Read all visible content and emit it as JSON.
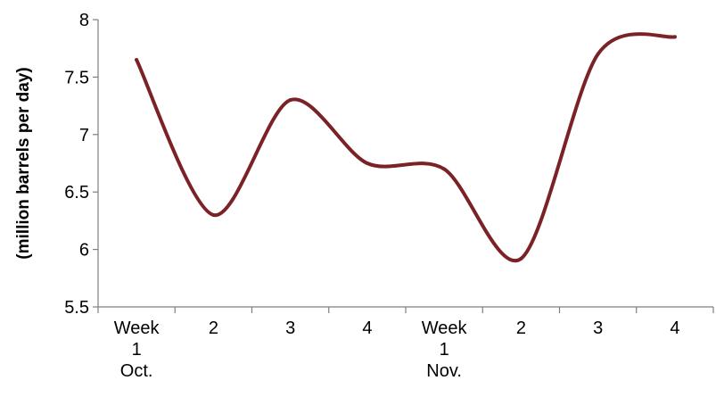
{
  "chart_data": {
    "type": "line",
    "title": "",
    "xlabel": "",
    "ylabel": "(million barrels per day)",
    "categories": [
      [
        "Week",
        "1",
        "Oct."
      ],
      [
        "2"
      ],
      [
        "3"
      ],
      [
        "4"
      ],
      [
        "Week",
        "1",
        "Nov."
      ],
      [
        "2"
      ],
      [
        "3"
      ],
      [
        "4"
      ]
    ],
    "series": [
      {
        "values": [
          7.65,
          6.3,
          7.3,
          6.75,
          6.7,
          5.92,
          7.7,
          7.85
        ],
        "color": "#7b2226",
        "smooth": true
      }
    ],
    "ylim": [
      5.5,
      8
    ],
    "yticks": [
      "5.5",
      "6",
      "6.5",
      "7",
      "7.5",
      "8"
    ],
    "grid": false,
    "legend": "none"
  }
}
